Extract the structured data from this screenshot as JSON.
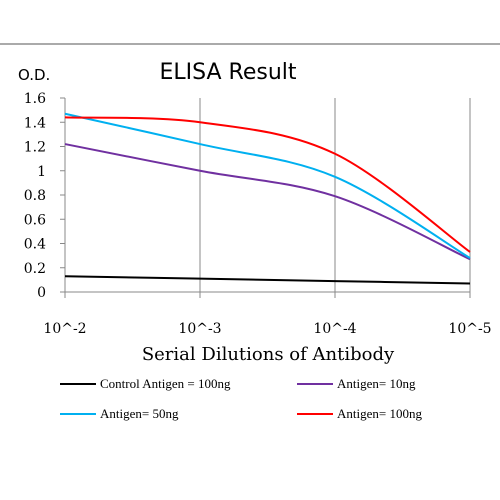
{
  "chart_data": {
    "type": "line",
    "title": "ELISA Result",
    "ylabel": "O.D.",
    "xlabel": "Serial Dilutions of Antibody",
    "x_scale": "log",
    "x": [
      0.01,
      0.001,
      0.0001,
      1e-05
    ],
    "x_tick_labels": [
      "10^-2",
      "10^-3",
      "10^-4",
      "10^-5"
    ],
    "y_ticks": [
      "0",
      "0.2",
      "0.4",
      "0.6",
      "0.8",
      "1",
      "1.2",
      "1.4",
      "1.6"
    ],
    "ylim": [
      0,
      1.6
    ],
    "grid": "vertical",
    "legend_position": "bottom",
    "series": [
      {
        "name": "Control Antigen = 100ng",
        "color": "#000000",
        "points": [
          [
            0.01,
            0.13
          ],
          [
            0.001,
            0.11
          ],
          [
            0.0001,
            0.09
          ],
          [
            1e-05,
            0.07
          ]
        ]
      },
      {
        "name": "Antigen= 10ng",
        "color": "#7030a0",
        "points": [
          [
            0.01,
            1.22
          ],
          [
            0.001,
            1.0
          ],
          [
            0.0001,
            0.79
          ],
          [
            1e-05,
            0.27
          ]
        ]
      },
      {
        "name": "Antigen= 50ng",
        "color": "#00b0f0",
        "points": [
          [
            0.01,
            1.47
          ],
          [
            0.001,
            1.22
          ],
          [
            0.0001,
            0.95
          ],
          [
            1e-05,
            0.28
          ]
        ]
      },
      {
        "name": "Antigen= 100ng",
        "color": "#ff0000",
        "points": [
          [
            0.01,
            1.44
          ],
          [
            0.001,
            1.4
          ],
          [
            0.0001,
            1.14
          ],
          [
            1e-05,
            0.33
          ]
        ]
      }
    ]
  }
}
